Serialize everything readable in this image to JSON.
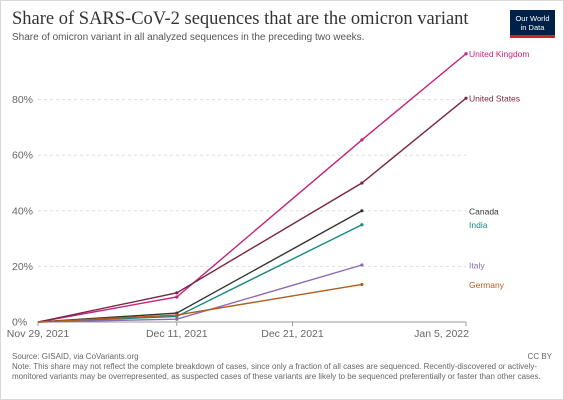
{
  "header": {
    "title": "Share of SARS-CoV-2 sequences that are the omicron variant",
    "subtitle": "Share of omicron variant in all analyzed sequences in the preceding two weeks.",
    "logo_line1": "Our World",
    "logo_line2": "in Data"
  },
  "footer": {
    "source": "Source: GISAID, via CoVariants.org",
    "note": "Note: This share may not reflect the complete breakdown of cases, since only a fraction of all cases are sequenced. Recently-discovered or actively-monitored variants may be overrepresented, as suspected cases of these variants are likely to be sequenced preferentially or faster than other cases.",
    "license": "CC BY"
  },
  "chart_data": {
    "type": "line",
    "x_axis": {
      "type": "date",
      "range": [
        "2021-11-29",
        "2022-01-05"
      ],
      "ticks": [
        {
          "date": "2021-11-29",
          "label": "Nov 29, 2021"
        },
        {
          "date": "2021-12-11",
          "label": "Dec 11, 2021"
        },
        {
          "date": "2021-12-21",
          "label": "Dec 21, 2021"
        },
        {
          "date": "2022-01-05",
          "label": "Jan 5, 2022"
        }
      ]
    },
    "y_axis": {
      "range": [
        0,
        100
      ],
      "ticks": [
        0,
        20,
        40,
        60,
        80
      ],
      "tick_labels": [
        "0%",
        "20%",
        "40%",
        "60%",
        "80%"
      ]
    },
    "grid": "horizontal-dashed",
    "series": [
      {
        "name": "United Kingdom",
        "color": "#c1237e",
        "points": [
          [
            "2021-11-29",
            0
          ],
          [
            "2021-12-11",
            9
          ],
          [
            "2021-12-27",
            65.5
          ],
          [
            "2022-01-05",
            96.5
          ]
        ]
      },
      {
        "name": "United States",
        "color": "#7a2541",
        "points": [
          [
            "2021-11-29",
            0
          ],
          [
            "2021-12-11",
            10.5
          ],
          [
            "2021-12-27",
            50
          ],
          [
            "2022-01-05",
            80.5
          ]
        ]
      },
      {
        "name": "Canada",
        "color": "#333333",
        "points": [
          [
            "2021-11-29",
            0
          ],
          [
            "2021-12-11",
            3.2
          ],
          [
            "2021-12-27",
            40
          ]
        ]
      },
      {
        "name": "India",
        "color": "#178a7c",
        "points": [
          [
            "2021-11-29",
            0
          ],
          [
            "2021-12-11",
            2
          ],
          [
            "2021-12-27",
            35
          ]
        ]
      },
      {
        "name": "Italy",
        "color": "#8a6ab3",
        "points": [
          [
            "2021-11-29",
            0
          ],
          [
            "2021-12-11",
            1
          ],
          [
            "2021-12-27",
            20.5
          ]
        ]
      },
      {
        "name": "Germany",
        "color": "#b35b1b",
        "points": [
          [
            "2021-11-29",
            0
          ],
          [
            "2021-12-11",
            2.5
          ],
          [
            "2021-12-27",
            13.5
          ]
        ]
      }
    ]
  }
}
